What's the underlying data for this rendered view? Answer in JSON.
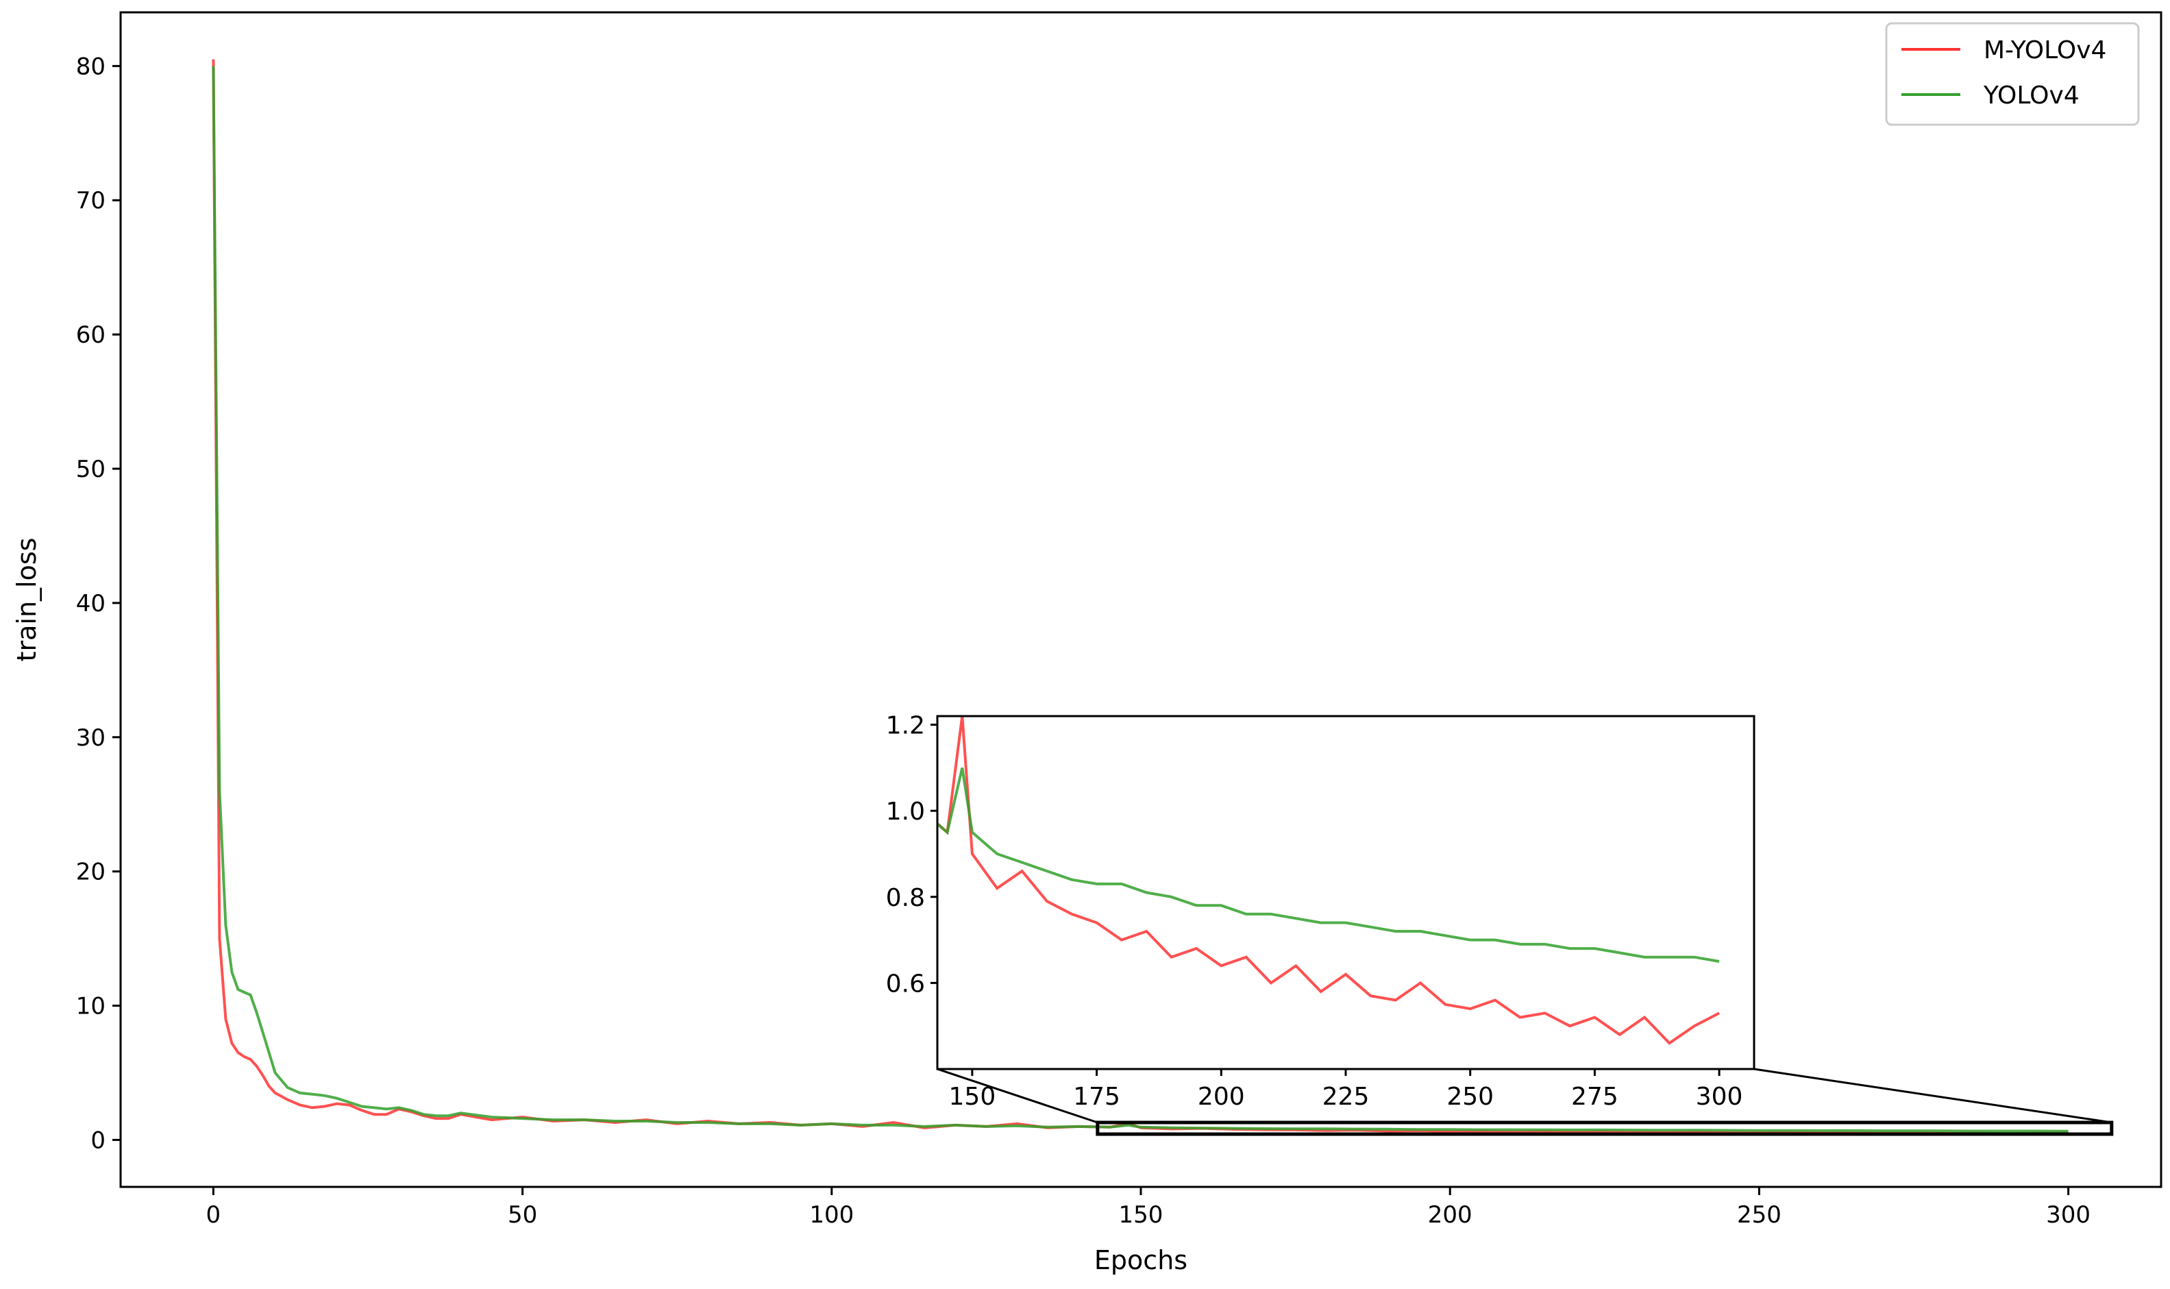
{
  "chart_data": {
    "type": "line",
    "title": "",
    "xlabel": "Epochs",
    "ylabel": "train_loss",
    "xlim": [
      -15,
      315
    ],
    "ylim": [
      -3.5,
      84
    ],
    "xticks": [
      0,
      50,
      100,
      150,
      200,
      250,
      300
    ],
    "yticks": [
      0,
      10,
      20,
      30,
      40,
      50,
      60,
      70,
      80
    ],
    "grid": false,
    "legend": {
      "position": "top-right",
      "entries": [
        "M-YOLOv4",
        "YOLOv4"
      ]
    },
    "series": [
      {
        "name": "M-YOLOv4",
        "color": "#ff3333",
        "x": [
          0,
          1,
          2,
          3,
          4,
          5,
          6,
          7,
          8,
          9,
          10,
          12,
          14,
          16,
          18,
          20,
          22,
          24,
          26,
          28,
          30,
          32,
          34,
          36,
          38,
          40,
          45,
          50,
          55,
          60,
          65,
          70,
          75,
          80,
          85,
          90,
          95,
          100,
          105,
          110,
          115,
          120,
          125,
          130,
          135,
          140,
          145,
          148,
          150,
          155,
          160,
          165,
          170,
          175,
          180,
          185,
          190,
          195,
          200,
          205,
          210,
          215,
          220,
          225,
          230,
          235,
          240,
          245,
          250,
          255,
          260,
          265,
          270,
          275,
          280,
          285,
          290,
          295,
          300
        ],
        "y": [
          80.5,
          15.0,
          9.0,
          7.2,
          6.5,
          6.2,
          6.0,
          5.5,
          4.8,
          4.0,
          3.5,
          3.0,
          2.6,
          2.4,
          2.5,
          2.7,
          2.6,
          2.2,
          1.9,
          1.9,
          2.3,
          2.1,
          1.8,
          1.6,
          1.6,
          1.9,
          1.5,
          1.7,
          1.4,
          1.5,
          1.3,
          1.5,
          1.2,
          1.4,
          1.2,
          1.3,
          1.1,
          1.2,
          1.0,
          1.3,
          0.9,
          1.1,
          1.0,
          1.2,
          0.9,
          1.0,
          0.95,
          1.22,
          0.9,
          0.82,
          0.86,
          0.79,
          0.76,
          0.74,
          0.7,
          0.72,
          0.66,
          0.68,
          0.64,
          0.66,
          0.6,
          0.64,
          0.58,
          0.62,
          0.57,
          0.56,
          0.6,
          0.55,
          0.54,
          0.56,
          0.52,
          0.53,
          0.5,
          0.52,
          0.48,
          0.52,
          0.46,
          0.5,
          0.53
        ]
      },
      {
        "name": "YOLOv4",
        "color": "#33a02c",
        "x": [
          0,
          1,
          2,
          3,
          4,
          5,
          6,
          7,
          8,
          9,
          10,
          12,
          14,
          16,
          18,
          20,
          22,
          24,
          26,
          28,
          30,
          32,
          34,
          36,
          38,
          40,
          45,
          50,
          55,
          60,
          65,
          70,
          75,
          80,
          85,
          90,
          95,
          100,
          105,
          110,
          115,
          120,
          125,
          130,
          135,
          140,
          145,
          148,
          150,
          155,
          160,
          165,
          170,
          175,
          180,
          185,
          190,
          195,
          200,
          205,
          210,
          215,
          220,
          225,
          230,
          235,
          240,
          245,
          250,
          255,
          260,
          265,
          270,
          275,
          280,
          285,
          290,
          295,
          300
        ],
        "y": [
          80.0,
          26.0,
          16.0,
          12.5,
          11.2,
          11.0,
          10.8,
          9.5,
          8.0,
          6.5,
          5.0,
          3.9,
          3.5,
          3.4,
          3.3,
          3.1,
          2.8,
          2.5,
          2.4,
          2.3,
          2.4,
          2.2,
          1.9,
          1.8,
          1.8,
          2.0,
          1.7,
          1.6,
          1.5,
          1.5,
          1.4,
          1.4,
          1.3,
          1.3,
          1.2,
          1.2,
          1.1,
          1.2,
          1.1,
          1.1,
          1.0,
          1.1,
          1.0,
          1.05,
          0.95,
          1.0,
          0.95,
          1.1,
          0.95,
          0.9,
          0.88,
          0.86,
          0.84,
          0.83,
          0.83,
          0.81,
          0.8,
          0.78,
          0.78,
          0.76,
          0.76,
          0.75,
          0.74,
          0.74,
          0.73,
          0.72,
          0.72,
          0.71,
          0.7,
          0.7,
          0.69,
          0.69,
          0.68,
          0.68,
          0.67,
          0.66,
          0.66,
          0.66,
          0.65
        ]
      }
    ],
    "inset": {
      "xlim": [
        143,
        307
      ],
      "ylim": [
        0.4,
        1.22
      ],
      "xticks": [
        150,
        175,
        200,
        225,
        250,
        275,
        300
      ],
      "yticks": [
        0.6,
        0.8,
        1.0,
        1.2
      ],
      "ytick_labels": [
        "0.6",
        "0.8",
        "1.0",
        "1.2"
      ]
    }
  }
}
